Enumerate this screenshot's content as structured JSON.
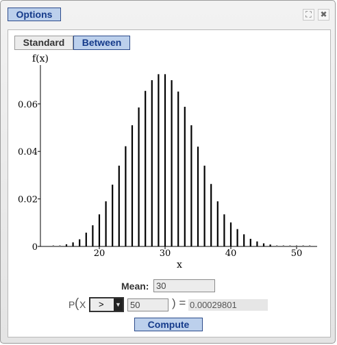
{
  "toolbar": {
    "options_label": "Options"
  },
  "window_controls": {
    "maximize": "⛶",
    "close": "✖"
  },
  "mode": {
    "standard_label": "Standard",
    "between_label": "Between",
    "active": "Between"
  },
  "chart_data": {
    "type": "bar",
    "title": "",
    "xlabel": "x",
    "ylabel": "f(x)",
    "xlim": [
      11.5,
      53
    ],
    "ylim": [
      0,
      0.0735
    ],
    "x_ticks": [
      20,
      30,
      40,
      50
    ],
    "y_ticks": [
      0,
      0.02,
      0.04,
      0.06
    ],
    "y_tick_labels": [
      "0",
      "0.02",
      "0.04",
      "0.06"
    ],
    "x": [
      13,
      14,
      15,
      16,
      17,
      18,
      19,
      20,
      21,
      22,
      23,
      24,
      25,
      26,
      27,
      28,
      29,
      30,
      31,
      32,
      33,
      34,
      35,
      36,
      37,
      38,
      39,
      40,
      41,
      42,
      43,
      44,
      45,
      46,
      47,
      48,
      49,
      50,
      51,
      52
    ],
    "values": [
      0.0003,
      0.0004,
      0.0009,
      0.0017,
      0.003,
      0.0058,
      0.0089,
      0.0135,
      0.019,
      0.026,
      0.034,
      0.0422,
      0.051,
      0.0585,
      0.0655,
      0.07,
      0.0725,
      0.0725,
      0.07,
      0.0652,
      0.0588,
      0.051,
      0.042,
      0.034,
      0.0263,
      0.019,
      0.0135,
      0.0101,
      0.0073,
      0.0051,
      0.0032,
      0.0021,
      0.0013,
      0.0008,
      0.0005,
      0.0003,
      0.0002,
      0.0001,
      0.0001,
      0.0001
    ],
    "grid": false
  },
  "mean": {
    "label": "Mean:",
    "value": "30"
  },
  "probability": {
    "p_label": "P",
    "open_paren": "(",
    "var_label": "X",
    "operator": ">",
    "bound": "50",
    "close_equals": ") =",
    "result": "0.00029801"
  },
  "compute_label": "Compute"
}
